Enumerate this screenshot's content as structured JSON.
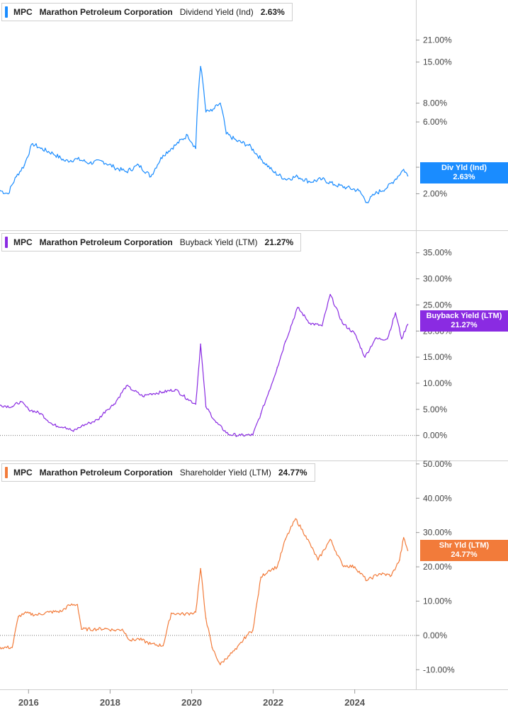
{
  "colors": {
    "panel1": "#1a8cff",
    "panel2": "#8a2be2",
    "panel3": "#f27b3a",
    "axis": "#cfcfcf",
    "zero_line": "#777777"
  },
  "chart_data": [
    {
      "type": "line",
      "ticker": "MPC",
      "company": "Marathon Petroleum Corporation",
      "metric": "Dividend Yield (Ind)",
      "current_value": "2.63%",
      "tag_label": "Div Yld (Ind)",
      "y_scale": "log",
      "ylim": [
        1.5,
        28
      ],
      "y_ticks": [
        2,
        3,
        6,
        8,
        15,
        21
      ],
      "y_tick_labels": [
        "2.00%",
        "3.00%",
        "6.00%",
        "8.00%",
        "15.00%",
        "21.00%"
      ],
      "x": [
        2015.3,
        2015.5,
        2015.7,
        2015.9,
        2016.1,
        2016.3,
        2016.6,
        2016.9,
        2017.2,
        2017.5,
        2017.8,
        2018.1,
        2018.4,
        2018.7,
        2019.0,
        2019.3,
        2019.6,
        2019.9,
        2020.1,
        2020.22,
        2020.35,
        2020.5,
        2020.7,
        2020.85,
        2021.1,
        2021.4,
        2021.7,
        2022.0,
        2022.3,
        2022.6,
        2022.9,
        2023.2,
        2023.5,
        2023.8,
        2024.1,
        2024.3,
        2024.5,
        2024.8,
        2025.0,
        2025.2,
        2025.3
      ],
      "y": [
        2.1,
        2.0,
        2.6,
        3.1,
        4.3,
        4.0,
        3.7,
        3.3,
        3.4,
        3.2,
        3.3,
        3.0,
        2.8,
        3.1,
        2.6,
        3.6,
        4.2,
        4.9,
        4.0,
        14.0,
        7.0,
        7.1,
        8.0,
        5.0,
        4.5,
        4.2,
        3.4,
        2.8,
        2.5,
        2.6,
        2.4,
        2.5,
        2.3,
        2.2,
        2.1,
        1.75,
        2.0,
        2.2,
        2.5,
        2.9,
        2.63
      ]
    },
    {
      "type": "line",
      "ticker": "MPC",
      "company": "Marathon Petroleum Corporation",
      "metric": "Buyback Yield (LTM)",
      "current_value": "21.27%",
      "tag_label": "Buyback Yield (LTM)",
      "y_scale": "linear",
      "ylim": [
        -1,
        37
      ],
      "y_ticks": [
        0,
        5,
        10,
        15,
        20,
        25,
        30,
        35
      ],
      "y_tick_labels": [
        "0.00%",
        "5.00%",
        "10.00%",
        "15.00%",
        "20.00%",
        "25.00%",
        "30.00%",
        "35.00%"
      ],
      "x": [
        2015.3,
        2015.6,
        2015.8,
        2016.0,
        2016.3,
        2016.6,
        2016.9,
        2017.1,
        2017.3,
        2017.5,
        2017.7,
        2017.9,
        2018.1,
        2018.4,
        2018.6,
        2018.8,
        2019.0,
        2019.3,
        2019.6,
        2019.9,
        2020.1,
        2020.22,
        2020.35,
        2020.6,
        2020.9,
        2021.2,
        2021.5,
        2021.7,
        2021.9,
        2022.1,
        2022.3,
        2022.6,
        2022.9,
        2023.2,
        2023.4,
        2023.7,
        2024.0,
        2024.25,
        2024.5,
        2024.8,
        2025.0,
        2025.15,
        2025.3
      ],
      "y": [
        5.8,
        5.5,
        6.5,
        5.0,
        4.2,
        2.0,
        1.6,
        0.8,
        1.8,
        2.4,
        3.0,
        4.8,
        6.0,
        9.5,
        8.5,
        7.5,
        8.0,
        8.3,
        8.8,
        7.0,
        6.0,
        17.5,
        5.5,
        2.5,
        0.2,
        0.0,
        0.1,
        4.2,
        8.5,
        13.0,
        18.0,
        24.5,
        21.5,
        21.0,
        27.0,
        21.5,
        19.5,
        15.0,
        18.5,
        18.5,
        23.5,
        18.5,
        21.27
      ]
    },
    {
      "type": "line",
      "ticker": "MPC",
      "company": "Marathon Petroleum Corporation",
      "metric": "Shareholder Yield (LTM)",
      "current_value": "24.77%",
      "tag_label": "Shr Yld (LTM)",
      "y_scale": "linear",
      "ylim": [
        -12,
        51
      ],
      "y_ticks": [
        -10,
        0,
        10,
        20,
        30,
        40,
        50
      ],
      "y_tick_labels": [
        "-10.00%",
        "0.00%",
        "10.00%",
        "20.00%",
        "30.00%",
        "40.00%",
        "50.00%"
      ],
      "x": [
        2015.3,
        2015.6,
        2015.75,
        2015.9,
        2016.2,
        2016.5,
        2016.8,
        2017.0,
        2017.2,
        2017.3,
        2017.6,
        2017.9,
        2018.1,
        2018.3,
        2018.5,
        2018.7,
        2019.0,
        2019.3,
        2019.5,
        2019.8,
        2020.0,
        2020.1,
        2020.22,
        2020.35,
        2020.5,
        2020.7,
        2020.9,
        2021.1,
        2021.35,
        2021.5,
        2021.7,
        2021.9,
        2022.1,
        2022.3,
        2022.55,
        2022.8,
        2023.1,
        2023.4,
        2023.7,
        2024.0,
        2024.3,
        2024.6,
        2024.9,
        2025.1,
        2025.2,
        2025.3
      ],
      "y": [
        -3.5,
        -3.5,
        5.5,
        6.5,
        6.0,
        6.8,
        7.0,
        8.8,
        9.0,
        1.8,
        1.8,
        2.0,
        1.5,
        1.8,
        -1.5,
        -1.0,
        -2.5,
        -3.0,
        6.5,
        6.2,
        6.5,
        6.8,
        19.5,
        5.0,
        -3.5,
        -8.5,
        -6.0,
        -4.0,
        0.0,
        1.5,
        17.0,
        19.0,
        20.0,
        28.0,
        34.0,
        29.0,
        22.0,
        28.0,
        20.5,
        20.0,
        16.0,
        18.0,
        17.5,
        22.0,
        28.5,
        24.77
      ]
    }
  ],
  "x_axis": {
    "ticks": [
      2016,
      2018,
      2020,
      2022,
      2024
    ],
    "tick_labels": [
      "2016",
      "2018",
      "2020",
      "2022",
      "2024"
    ],
    "xlim": [
      2015.3,
      2025.5
    ]
  }
}
